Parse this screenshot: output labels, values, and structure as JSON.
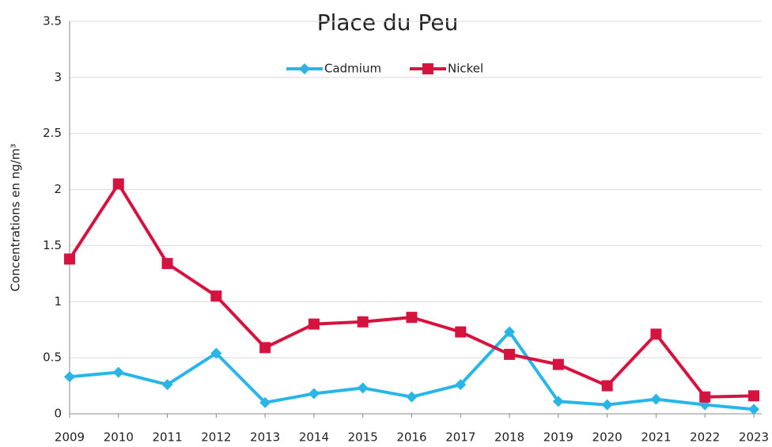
{
  "chart_data": {
    "type": "line",
    "title": "Place du Peu",
    "y_label": "Concentrations en ng/m³",
    "categories": [
      "2009",
      "2010",
      "2011",
      "2012",
      "2013",
      "2014",
      "2015",
      "2016",
      "2017",
      "2018",
      "2019",
      "2020",
      "2021",
      "2022",
      "2023"
    ],
    "series": [
      {
        "name": "Cadmium",
        "color": "#2ab5e8",
        "marker": "diamond",
        "values": [
          0.33,
          0.37,
          0.26,
          0.54,
          0.1,
          0.18,
          0.23,
          0.15,
          0.26,
          0.73,
          0.11,
          0.08,
          0.13,
          0.08,
          0.04
        ]
      },
      {
        "name": "Nickel",
        "color": "#d6123f",
        "marker": "square",
        "values": [
          1.38,
          2.05,
          1.34,
          1.05,
          0.59,
          0.8,
          0.82,
          0.86,
          0.73,
          0.53,
          0.44,
          0.25,
          0.71,
          0.15,
          0.16
        ]
      }
    ],
    "ylim": [
      0,
      3.5
    ],
    "yticks": [
      0,
      0.5,
      1,
      1.5,
      2,
      2.5,
      3,
      3.5
    ],
    "grid": true
  }
}
